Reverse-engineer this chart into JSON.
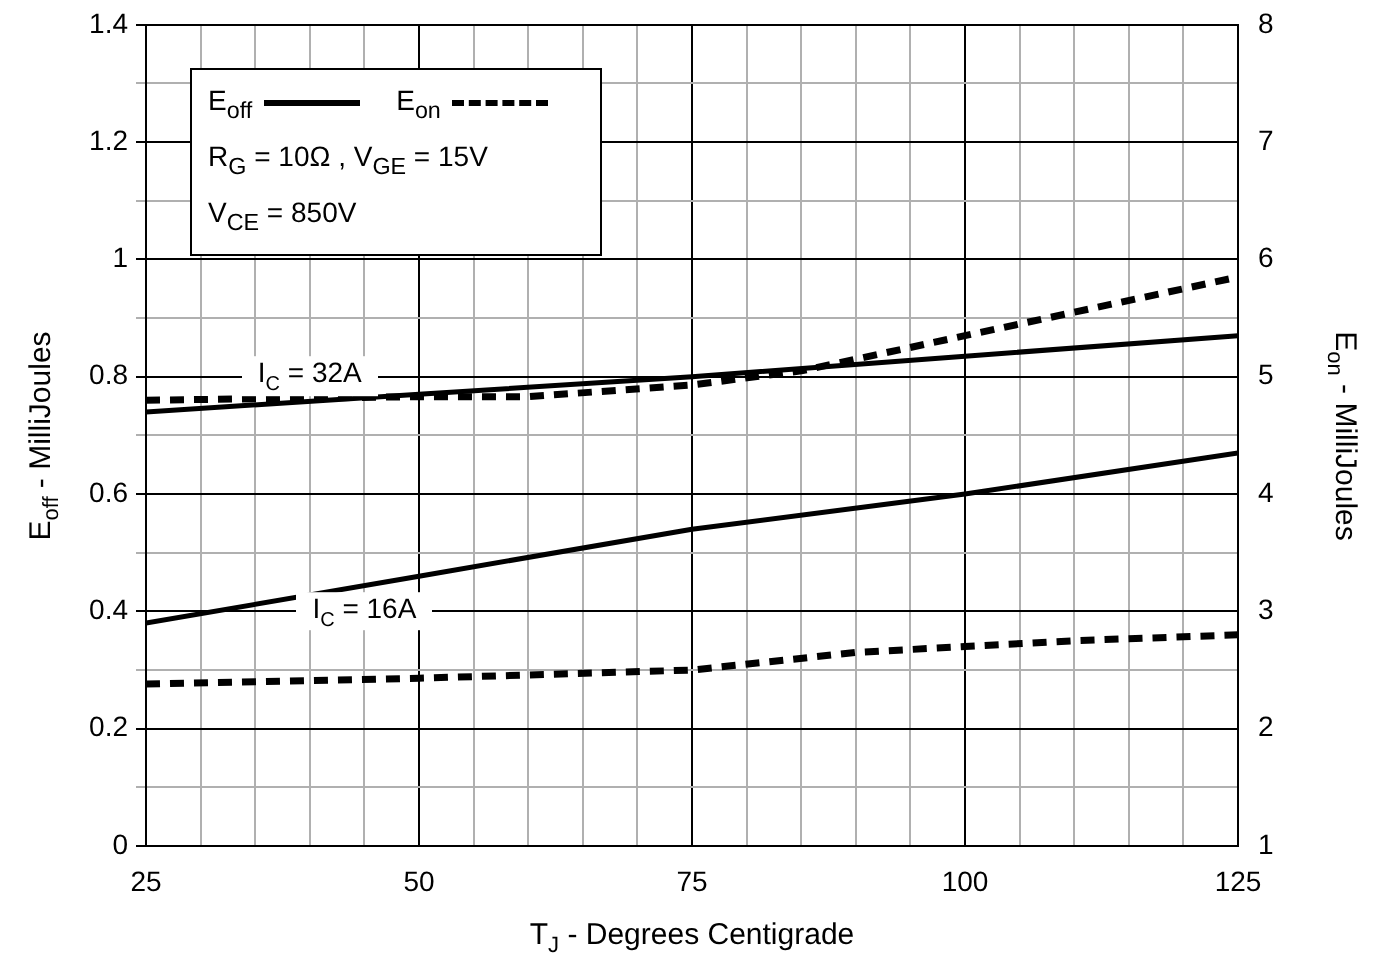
{
  "chart_data": {
    "type": "line",
    "xlabel": "T$_{J}$ - Degrees Centigrade",
    "ylabel": "E$_{off}$ - MilliJoules",
    "y2label": "E$_{on}$ - MilliJoules",
    "xlim": [
      25,
      125
    ],
    "xticks": [
      25,
      {
        "value": 30,
        "label": null
      },
      {
        "value": 35,
        "label": null
      },
      {
        "value": 40,
        "label": null
      },
      {
        "value": 45,
        "label": null
      },
      50,
      {
        "value": 55,
        "label": null
      },
      {
        "value": 60,
        "label": null
      },
      {
        "value": 65,
        "label": null
      },
      {
        "value": 70,
        "label": null
      },
      75,
      {
        "value": 80,
        "label": null
      },
      {
        "value": 85,
        "label": null
      },
      {
        "value": 90,
        "label": null
      },
      {
        "value": 95,
        "label": null
      },
      100,
      {
        "value": 105,
        "label": null
      },
      {
        "value": 110,
        "label": null
      },
      {
        "value": 115,
        "label": null
      },
      {
        "value": 120,
        "label": null
      },
      125
    ],
    "ylim": [
      0,
      1.4
    ],
    "yticks": [
      0,
      {
        "value": 0.1,
        "label": null
      },
      0.2,
      {
        "value": 0.3,
        "label": null
      },
      0.4,
      {
        "value": 0.5,
        "label": null
      },
      0.6,
      {
        "value": 0.7,
        "label": null
      },
      0.8,
      {
        "value": 0.9,
        "label": null
      },
      1,
      {
        "value": 1.1,
        "label": null
      },
      1.2,
      {
        "value": 1.3,
        "label": null
      },
      1.4
    ],
    "y2lim": [
      1,
      8
    ],
    "y2ticks": [
      1,
      2,
      3,
      4,
      5,
      6,
      7,
      8
    ],
    "grid": true,
    "legend": "top left",
    "marker": "none",
    "series": [
      {
        "name": "E$_{off}$",
        "color": "#000000",
        "line_style": "solid",
        "x": [
          25,
          50,
          75,
          100,
          125
        ],
        "values": [
          0.74,
          0.77,
          0.8,
          0.835,
          0.87
        ]
      },
      {
        "color": "#000000",
        "line_style": "solid",
        "x": [
          25,
          50,
          75,
          100,
          125
        ],
        "values": [
          0.38,
          0.46,
          0.54,
          0.6,
          0.67
        ]
      },
      {
        "name": "E$_{on}$",
        "color": "#000000",
        "line_style": "dashed",
        "axis": "y2",
        "x": [
          25,
          50,
          60,
          75,
          85,
          90,
          100,
          110,
          125
        ],
        "values": [
          4.8,
          4.83,
          4.83,
          4.93,
          5.05,
          5.15,
          5.35,
          5.55,
          5.85
        ]
      },
      {
        "color": "#000000",
        "line_style": "dashed",
        "axis": "y2",
        "x": [
          25,
          50,
          75,
          90,
          100,
          110,
          125
        ],
        "values": [
          2.38,
          2.43,
          2.5,
          2.65,
          2.7,
          2.75,
          2.8
        ]
      }
    ],
    "annotations": [
      "R$_{G}$ = 10Ω ,  V$_{GE}$ = 15V",
      "V$_{CE}$ = 850V",
      "I$_{C}$ = 32A",
      "I$_{C}$ = 16A"
    ]
  }
}
